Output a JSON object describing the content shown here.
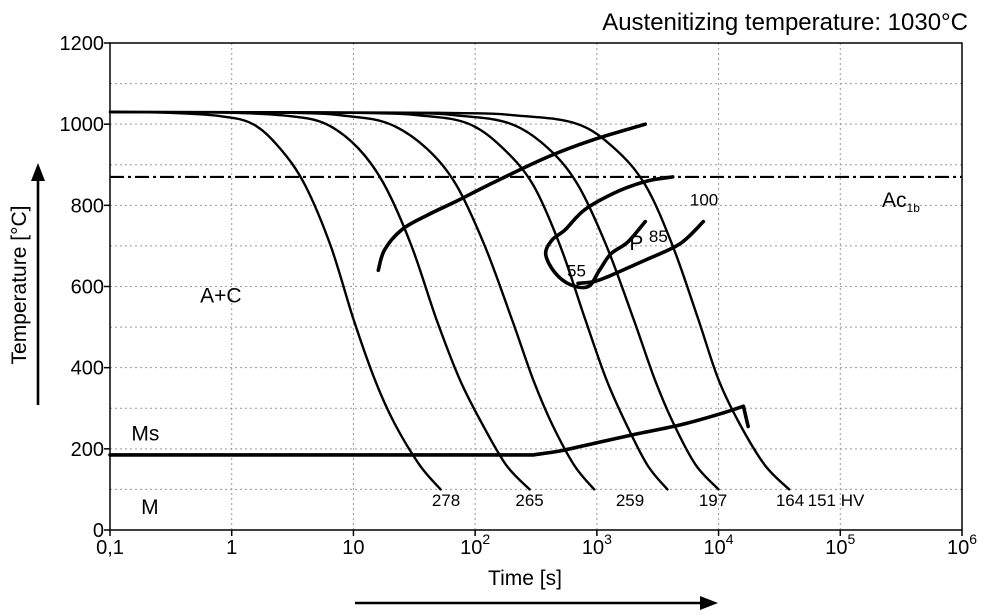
{
  "chart_data": {
    "type": "line",
    "title": "Austenitizing temperature: 1030°C",
    "xlabel": "Time [s]",
    "ylabel": "Temperature [°C]",
    "x_scale": "log",
    "xlim": [
      0.1,
      1000000
    ],
    "ylim": [
      0,
      1200
    ],
    "x_ticks": [
      {
        "value": 0.1,
        "base": "0,1",
        "exp": ""
      },
      {
        "value": 1,
        "base": "1",
        "exp": ""
      },
      {
        "value": 10,
        "base": "10",
        "exp": ""
      },
      {
        "value": 100,
        "base": "10",
        "exp": "2"
      },
      {
        "value": 1000,
        "base": "10",
        "exp": "3"
      },
      {
        "value": 10000,
        "base": "10",
        "exp": "4"
      },
      {
        "value": 100000,
        "base": "10",
        "exp": "5"
      },
      {
        "value": 1000000,
        "base": "10",
        "exp": "6"
      }
    ],
    "y_ticks": [
      {
        "value": 0,
        "label": "0"
      },
      {
        "value": 200,
        "label": "200"
      },
      {
        "value": 400,
        "label": "400"
      },
      {
        "value": 600,
        "label": "600"
      },
      {
        "value": 800,
        "label": "800"
      },
      {
        "value": 1000,
        "label": "1000"
      },
      {
        "value": 1200,
        "label": "1200"
      }
    ],
    "grid": true,
    "austenitizing_temperature": 1030,
    "ac1b": {
      "label": "Ac",
      "sub": "1b",
      "temperature": 870
    },
    "cooling_curves": [
      {
        "hardness": "278",
        "points": [
          [
            0.1,
            1030
          ],
          [
            0.3,
            1028
          ],
          [
            0.8,
            1020
          ],
          [
            1.5,
            1000
          ],
          [
            2.5,
            940
          ],
          [
            4,
            850
          ],
          [
            6.5,
            700
          ],
          [
            10,
            520
          ],
          [
            15,
            370
          ],
          [
            22,
            260
          ],
          [
            35,
            160
          ],
          [
            52,
            100
          ]
        ]
      },
      {
        "hardness": "265",
        "points": [
          [
            0.1,
            1030
          ],
          [
            1,
            1028
          ],
          [
            3,
            1020
          ],
          [
            6,
            1000
          ],
          [
            11,
            940
          ],
          [
            18,
            850
          ],
          [
            30,
            700
          ],
          [
            48,
            520
          ],
          [
            75,
            370
          ],
          [
            115,
            260
          ],
          [
            180,
            160
          ],
          [
            280,
            100
          ]
        ]
      },
      {
        "hardness": "259",
        "points": [
          [
            0.1,
            1030
          ],
          [
            3,
            1028
          ],
          [
            9,
            1020
          ],
          [
            20,
            1000
          ],
          [
            40,
            940
          ],
          [
            70,
            850
          ],
          [
            120,
            700
          ],
          [
            200,
            520
          ],
          [
            300,
            370
          ],
          [
            430,
            260
          ],
          [
            650,
            160
          ],
          [
            950,
            100
          ]
        ]
      },
      {
        "hardness": "197",
        "points": [
          [
            0.1,
            1030
          ],
          [
            10,
            1028
          ],
          [
            40,
            1020
          ],
          [
            90,
            1000
          ],
          [
            170,
            940
          ],
          [
            300,
            850
          ],
          [
            500,
            700
          ],
          [
            800,
            520
          ],
          [
            1200,
            370
          ],
          [
            1750,
            260
          ],
          [
            2600,
            160
          ],
          [
            3800,
            100
          ]
        ]
      },
      {
        "hardness": "164",
        "points": [
          [
            0.1,
            1030
          ],
          [
            20,
            1028
          ],
          [
            80,
            1020
          ],
          [
            200,
            1000
          ],
          [
            400,
            940
          ],
          [
            700,
            850
          ],
          [
            1200,
            700
          ],
          [
            2000,
            520
          ],
          [
            3000,
            370
          ],
          [
            4300,
            260
          ],
          [
            6500,
            160
          ],
          [
            10000,
            100
          ]
        ]
      },
      {
        "hardness": "151 HV",
        "points": [
          [
            0.1,
            1030
          ],
          [
            50,
            1028
          ],
          [
            250,
            1020
          ],
          [
            700,
            1000
          ],
          [
            1400,
            940
          ],
          [
            2500,
            850
          ],
          [
            4200,
            700
          ],
          [
            6800,
            520
          ],
          [
            10000,
            370
          ],
          [
            15000,
            260
          ],
          [
            24000,
            160
          ],
          [
            38000,
            100
          ]
        ]
      }
    ],
    "regions": [
      {
        "label": "A+C",
        "x": 0.55,
        "y": 560
      },
      {
        "label": "P",
        "x": 1850,
        "y": 690
      },
      {
        "label": "M",
        "x": 0.18,
        "y": 40
      },
      {
        "label": "Ms",
        "x": 0.15,
        "y": 220
      }
    ],
    "pearlite_start": [
      [
        16,
        640
      ],
      [
        18,
        690
      ],
      [
        25,
        740
      ],
      [
        40,
        775
      ],
      [
        70,
        810
      ],
      [
        150,
        860
      ],
      [
        400,
        920
      ],
      [
        900,
        960
      ],
      [
        2500,
        1000
      ]
    ],
    "pearlite_finish": [
      [
        2500,
        760
      ],
      [
        1800,
        710
      ],
      [
        1300,
        680
      ],
      [
        1050,
        640
      ],
      [
        850,
        600
      ],
      [
        600,
        605
      ],
      [
        450,
        635
      ],
      [
        380,
        680
      ],
      [
        430,
        715
      ],
      [
        550,
        740
      ],
      [
        800,
        790
      ],
      [
        1500,
        835
      ],
      [
        2600,
        860
      ],
      [
        4200,
        870
      ]
    ],
    "pearlite_percent_labels": [
      {
        "label": "55",
        "x": 680,
        "y": 625
      },
      {
        "label": "85",
        "x": 3200,
        "y": 710
      },
      {
        "label": "100",
        "x": 7600,
        "y": 800
      }
    ],
    "pearlite_lines": [
      {
        "percent": "55",
        "points": [
          [
            700,
            608
          ],
          [
            950,
            612
          ],
          [
            1250,
            625
          ]
        ]
      },
      {
        "percent": "85",
        "points": [
          [
            1250,
            625
          ],
          [
            2500,
            665
          ],
          [
            4800,
            705
          ],
          [
            7500,
            760
          ]
        ]
      }
    ],
    "ms_line": [
      [
        0.1,
        185
      ],
      [
        0.5,
        185
      ],
      [
        5,
        185
      ],
      [
        50,
        185
      ],
      [
        300,
        185
      ],
      [
        500,
        195
      ],
      [
        1000,
        215
      ],
      [
        2000,
        235
      ],
      [
        5000,
        260
      ],
      [
        10000,
        285
      ],
      [
        16000,
        305
      ],
      [
        17500,
        255
      ]
    ]
  }
}
